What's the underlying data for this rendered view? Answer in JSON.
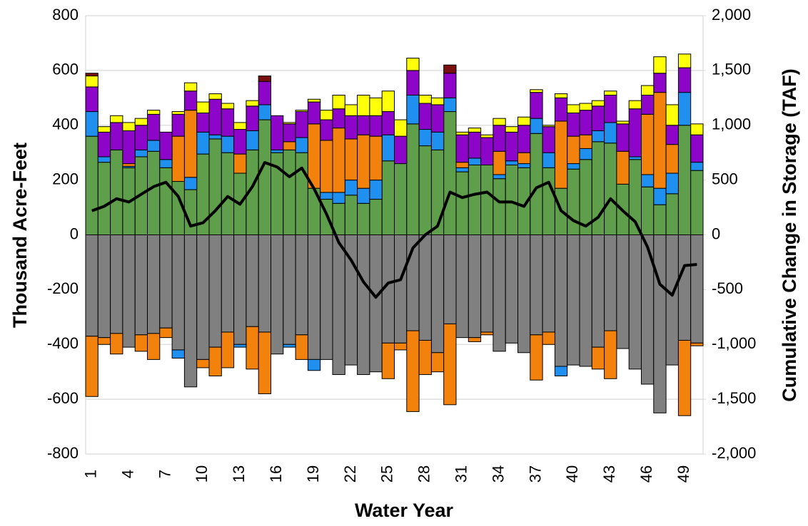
{
  "chart_data": {
    "type": "bar",
    "x_label": "Water Year",
    "y_label": "Thousand Acre-Feet",
    "y2_label": "Cumulative Change in Storage (TAF)",
    "categories": [
      1,
      null,
      null,
      4,
      null,
      null,
      7,
      null,
      null,
      10,
      null,
      null,
      13,
      null,
      null,
      16,
      null,
      null,
      19,
      null,
      null,
      22,
      null,
      null,
      25,
      null,
      null,
      28,
      null,
      null,
      31,
      null,
      null,
      34,
      null,
      null,
      37,
      null,
      null,
      40,
      null,
      null,
      43,
      null,
      null,
      46,
      null,
      null,
      49,
      null
    ],
    "ylim": [
      -800,
      800
    ],
    "yticks": [
      -800,
      -600,
      -400,
      -200,
      0,
      200,
      400,
      600,
      800
    ],
    "y2lim": [
      -2000,
      2000
    ],
    "y2ticks": [
      {
        "value": -2000,
        "label": "-2,000"
      },
      {
        "value": -1500,
        "label": "-1,500"
      },
      {
        "value": -1000,
        "label": "-1,000"
      },
      -500,
      0,
      500,
      {
        "value": 1000,
        "label": "1,000"
      },
      {
        "value": 1500,
        "label": "1,500"
      },
      {
        "value": 2000,
        "label": "2,000"
      }
    ],
    "grid": true,
    "series": [
      {
        "color": "#5f9e4a",
        "values": [
          360,
          265,
          310,
          245,
          285,
          305,
          245,
          195,
          165,
          295,
          350,
          300,
          225,
          310,
          420,
          300,
          310,
          300,
          170,
          130,
          115,
          145,
          115,
          130,
          270,
          260,
          405,
          325,
          310,
          450,
          230,
          255,
          255,
          205,
          255,
          245,
          370,
          245,
          170,
          240,
          275,
          340,
          335,
          185,
          275,
          175,
          110,
          150,
          400,
          235
        ]
      },
      {
        "color": "#1f8ff0",
        "values": [
          90,
          20,
          0,
          5,
          25,
          40,
          30,
          0,
          45,
          80,
          15,
          60,
          0,
          70,
          55,
          10,
          0,
          55,
          0,
          25,
          40,
          55,
          55,
          70,
          95,
          0,
          105,
          60,
          65,
          50,
          15,
          25,
          0,
          15,
          15,
          15,
          55,
          55,
          0,
          20,
          40,
          40,
          75,
          0,
          10,
          45,
          60,
          75,
          120,
          30
        ]
      },
      {
        "color": "#f2820c",
        "values": [
          0,
          0,
          0,
          10,
          0,
          0,
          0,
          165,
          245,
          0,
          0,
          0,
          70,
          0,
          0,
          0,
          30,
          0,
          235,
          190,
          235,
          150,
          195,
          160,
          0,
          0,
          0,
          0,
          0,
          0,
          20,
          0,
          0,
          85,
          0,
          40,
          0,
          0,
          245,
          100,
          50,
          0,
          0,
          120,
          0,
          220,
          350,
          105,
          0,
          0
        ]
      },
      {
        "color": "#8c05c8",
        "values": [
          90,
          90,
          100,
          120,
          90,
          95,
          100,
          80,
          70,
          70,
          130,
          100,
          90,
          90,
          85,
          125,
          65,
          95,
          80,
          75,
          70,
          85,
          70,
          75,
          85,
          100,
          90,
          95,
          100,
          90,
          100,
          95,
          100,
          95,
          105,
          100,
          95,
          95,
          85,
          85,
          90,
          90,
          100,
          100,
          175,
          70,
          70,
          70,
          90,
          100
        ]
      },
      {
        "color": "#ffff0a",
        "values": [
          40,
          20,
          25,
          30,
          25,
          15,
          0,
          10,
          30,
          40,
          20,
          20,
          25,
          20,
          0,
          0,
          5,
          5,
          10,
          35,
          50,
          40,
          75,
          65,
          75,
          60,
          45,
          30,
          25,
          0,
          10,
          15,
          10,
          25,
          20,
          30,
          10,
          5,
          15,
          30,
          25,
          20,
          15,
          10,
          30,
          35,
          60,
          75,
          50,
          40
        ]
      },
      {
        "color": "#7a0f0f",
        "values": [
          10,
          0,
          0,
          0,
          0,
          0,
          0,
          0,
          0,
          0,
          0,
          0,
          0,
          0,
          20,
          0,
          0,
          0,
          0,
          0,
          0,
          0,
          0,
          0,
          0,
          0,
          0,
          0,
          0,
          30,
          0,
          0,
          0,
          0,
          0,
          0,
          0,
          0,
          0,
          0,
          0,
          0,
          0,
          0,
          0,
          0,
          0,
          0,
          0,
          0
        ]
      },
      {
        "color": "#808080",
        "values": [
          -370,
          -375,
          -360,
          -410,
          -365,
          -360,
          -340,
          -420,
          -555,
          -455,
          -410,
          -355,
          -400,
          -335,
          -355,
          -435,
          -400,
          -365,
          -455,
          -455,
          -510,
          -475,
          -510,
          -500,
          -395,
          -395,
          -350,
          -385,
          -430,
          -325,
          -375,
          -375,
          -355,
          -425,
          -395,
          -430,
          -365,
          -355,
          -480,
          -475,
          -480,
          -410,
          -350,
          -415,
          -490,
          -545,
          -650,
          -475,
          -385,
          -395
        ]
      },
      {
        "color": "#f2820c",
        "values": [
          -220,
          -25,
          -75,
          0,
          -60,
          -95,
          -35,
          0,
          0,
          -30,
          -105,
          -130,
          0,
          -155,
          -225,
          0,
          0,
          -90,
          0,
          0,
          0,
          0,
          0,
          0,
          -130,
          -25,
          -295,
          -125,
          -70,
          -295,
          0,
          -15,
          -10,
          0,
          0,
          0,
          -165,
          -45,
          0,
          0,
          0,
          -80,
          -175,
          0,
          0,
          0,
          0,
          0,
          -275,
          -10
        ]
      },
      {
        "color": "#1f8ff0",
        "values": [
          0,
          0,
          0,
          0,
          0,
          0,
          0,
          -30,
          0,
          0,
          0,
          0,
          -10,
          0,
          0,
          0,
          -10,
          0,
          -40,
          0,
          0,
          0,
          0,
          0,
          0,
          0,
          0,
          0,
          0,
          0,
          0,
          0,
          0,
          0,
          0,
          0,
          0,
          0,
          -35,
          0,
          0,
          0,
          0,
          0,
          0,
          0,
          0,
          0,
          0,
          0
        ]
      },
      {
        "color": "#000000",
        "axis": "y2",
        "values": [
          220,
          260,
          330,
          300,
          370,
          440,
          480,
          350,
          80,
          110,
          220,
          350,
          280,
          440,
          660,
          620,
          530,
          610,
          420,
          190,
          -70,
          -230,
          -430,
          -570,
          -440,
          -410,
          -120,
          0,
          80,
          390,
          340,
          370,
          390,
          300,
          300,
          260,
          430,
          480,
          220,
          130,
          80,
          160,
          330,
          220,
          120,
          -110,
          -450,
          -550,
          -280,
          -270
        ]
      }
    ]
  }
}
